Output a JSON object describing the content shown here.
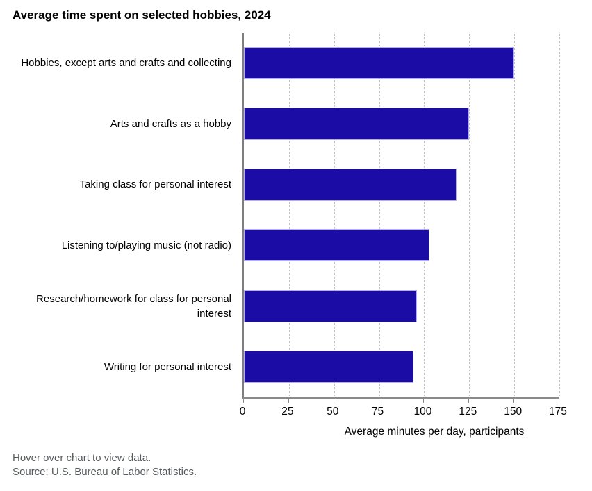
{
  "title": "Average time spent on selected hobbies, 2024",
  "footer": {
    "line1": "Hover over chart to view data.",
    "line2": "Source: U.S. Bureau of Labor Statistics."
  },
  "chart_data": {
    "type": "bar",
    "orientation": "horizontal",
    "title": "Average time spent on selected hobbies, 2024",
    "categories": [
      "Hobbies, except arts and crafts and collecting",
      "Arts and crafts as a hobby",
      "Taking class for personal interest",
      "Listening to/playing music (not radio)",
      "Research/homework for class for personal interest",
      "Writing for personal interest"
    ],
    "values": [
      150,
      125,
      118,
      103,
      96,
      94
    ],
    "xlabel": "Average minutes per day, participants",
    "ylabel": "",
    "xlim": [
      0,
      175
    ],
    "xticks": [
      0,
      25,
      50,
      75,
      100,
      125,
      150,
      175
    ],
    "grid": "vertical-dotted",
    "legend": "none",
    "colors": {
      "bar_fill": "#1b0ca5",
      "bar_border": "#b4afe9",
      "axis_line": "#8a8a8a",
      "gridline": "#bdbdbd",
      "tick_text": "#000000",
      "footer_text": "#575b5d"
    }
  }
}
